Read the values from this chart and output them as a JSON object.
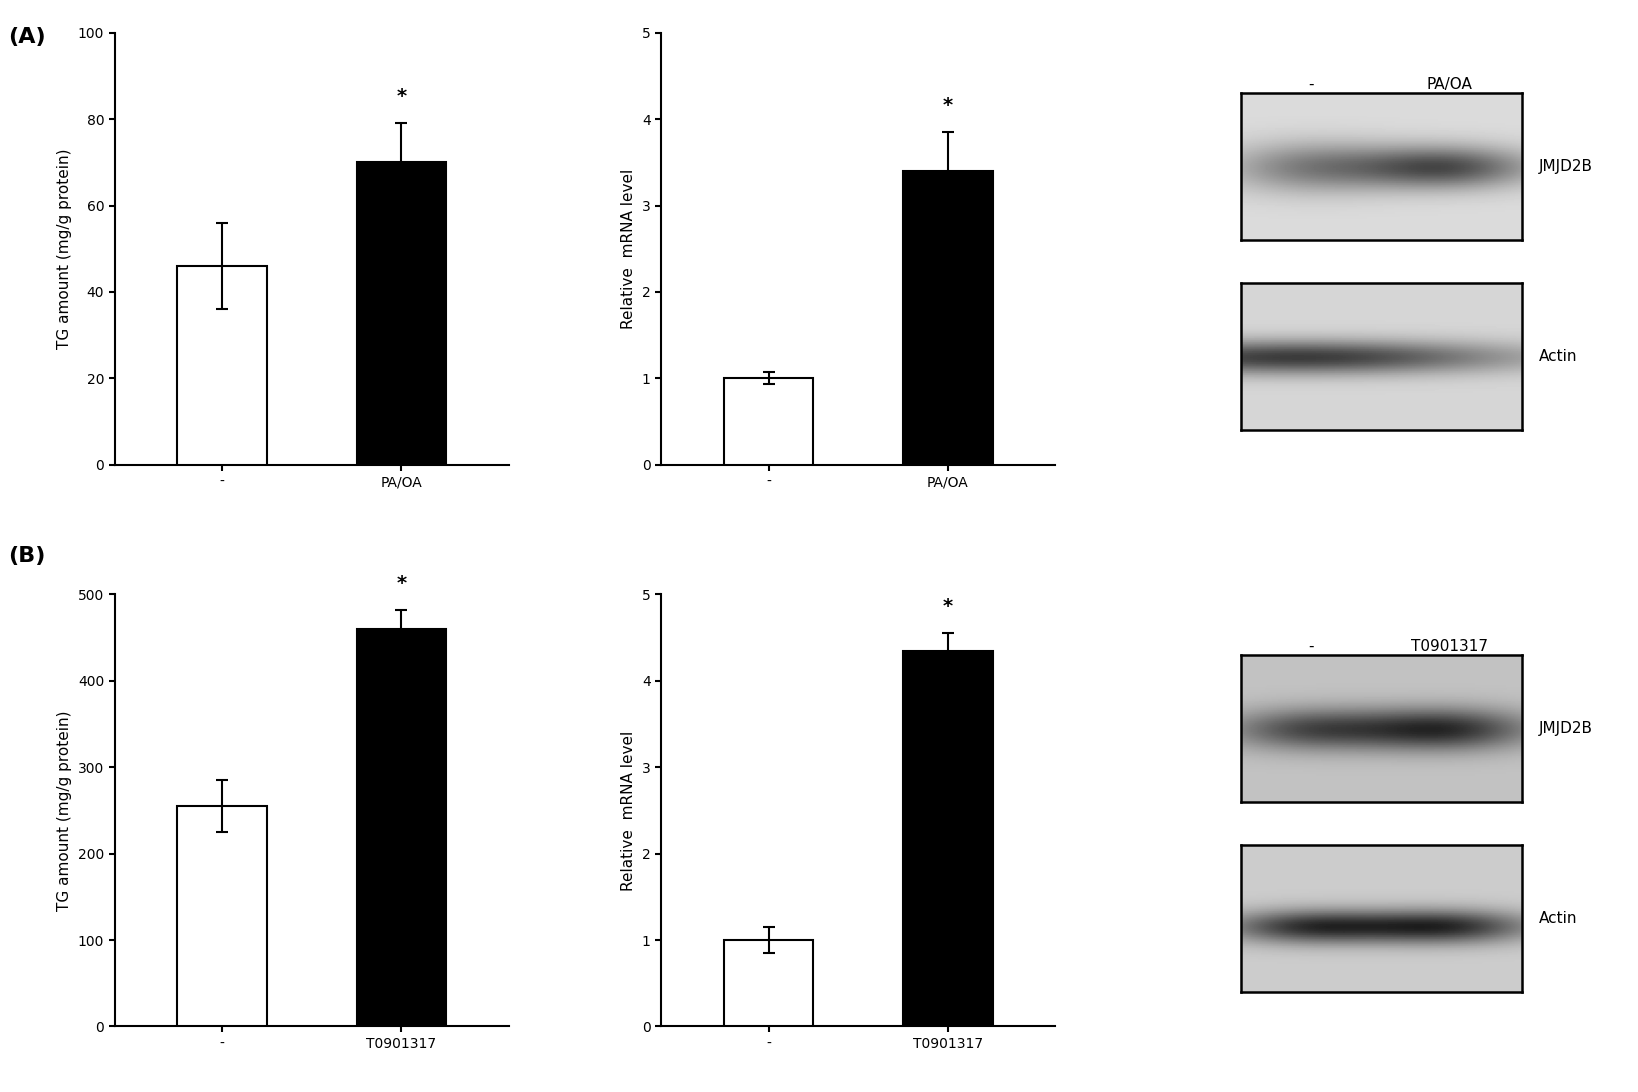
{
  "panel_A": {
    "tg": {
      "categories": [
        "-",
        "PA/OA"
      ],
      "values": [
        46,
        70
      ],
      "errors": [
        10,
        9
      ],
      "colors": [
        "white",
        "black"
      ],
      "ylabel": "TG amount (mg/g protein)",
      "ylim": [
        0,
        100
      ],
      "yticks": [
        0,
        20,
        40,
        60,
        80,
        100
      ],
      "star_bar": 1
    },
    "mrna": {
      "categories": [
        "-",
        "PA/OA"
      ],
      "values": [
        1.0,
        3.4
      ],
      "errors": [
        0.07,
        0.45
      ],
      "colors": [
        "white",
        "black"
      ],
      "ylabel": "Relative  mRNA level",
      "ylim": [
        0,
        5
      ],
      "yticks": [
        0,
        1,
        2,
        3,
        4,
        5
      ],
      "star_bar": 1
    },
    "wb_label": "PA/OA",
    "wb_neg_label": "-",
    "protein_label": "JMJD2B",
    "actin_label": "Actin",
    "jmjd2b_bands": [
      [
        0.25,
        0.22,
        0.12,
        0.5,
        0.28,
        130
      ],
      [
        0.72,
        0.22,
        0.1,
        0.5,
        0.32,
        80
      ]
    ],
    "actin_bands": [
      [
        0.2,
        0.55,
        0.08,
        0.5,
        0.38,
        60
      ]
    ],
    "jmjd2b_bg": 220,
    "actin_bg": 215
  },
  "panel_B": {
    "tg": {
      "categories": [
        "-",
        "T0901317"
      ],
      "values": [
        255,
        460
      ],
      "errors": [
        30,
        22
      ],
      "colors": [
        "white",
        "black"
      ],
      "ylabel": "TG amount (mg/g protein)",
      "ylim": [
        0,
        500
      ],
      "yticks": [
        0,
        100,
        200,
        300,
        400,
        500
      ],
      "star_bar": 1
    },
    "mrna": {
      "categories": [
        "-",
        "T0901317"
      ],
      "values": [
        1.0,
        4.35
      ],
      "errors": [
        0.15,
        0.2
      ],
      "colors": [
        "white",
        "black"
      ],
      "ylabel": "Relative  mRNA level",
      "ylim": [
        0,
        5
      ],
      "yticks": [
        0,
        1,
        2,
        3,
        4,
        5
      ],
      "star_bar": 1
    },
    "wb_label": "T0901317",
    "wb_neg_label": "-",
    "protein_label": "JMJD2B",
    "actin_label": "Actin",
    "jmjd2b_bands": [
      [
        0.25,
        0.22,
        0.1,
        0.5,
        0.3,
        80
      ],
      [
        0.72,
        0.22,
        0.1,
        0.5,
        0.3,
        50
      ]
    ],
    "actin_bands": [
      [
        0.25,
        0.22,
        0.08,
        0.55,
        0.35,
        55
      ],
      [
        0.72,
        0.22,
        0.08,
        0.55,
        0.35,
        50
      ]
    ],
    "jmjd2b_bg": 195,
    "actin_bg": 205
  },
  "background_color": "#ffffff",
  "bar_width": 0.5,
  "bar_edge_color": "black",
  "bar_edge_width": 1.5,
  "label_fontsize": 11,
  "tick_fontsize": 10,
  "panel_label_fontsize": 16
}
